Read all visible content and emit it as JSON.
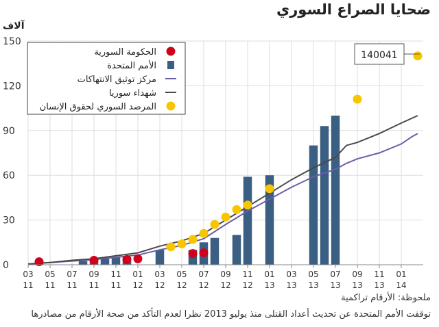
{
  "title": "ضحايا الصراع السوري",
  "unit_label": "آلاف",
  "notes": {
    "line1": "ملحوظة: الأرقام تراكمية",
    "line2": "توقفت الأمم المتحدة عن تحديث أعداد القتلى منذ يوليو 2013 نظرا لعدم التأكد من صحة الأرقام من مصادرها"
  },
  "callout": "140041",
  "colors": {
    "government": "#d0021b",
    "un": "#3a5f82",
    "vdc": "#6a5da8",
    "martyrs": "#4a4a4a",
    "sohr": "#f7c600",
    "grid": "#dddddd",
    "axis": "#888888"
  },
  "chart_data": {
    "type": "line",
    "ylim": [
      0,
      150
    ],
    "yticks": [
      0,
      30,
      60,
      90,
      120,
      150
    ],
    "xlim": [
      0,
      36
    ],
    "xticks": [
      {
        "x": 0,
        "top": "03",
        "bottom": "11"
      },
      {
        "x": 2,
        "top": "05",
        "bottom": "11"
      },
      {
        "x": 4,
        "top": "07",
        "bottom": "11"
      },
      {
        "x": 6,
        "top": "09",
        "bottom": "11"
      },
      {
        "x": 8,
        "top": "11",
        "bottom": "11"
      },
      {
        "x": 10,
        "top": "01",
        "bottom": "12"
      },
      {
        "x": 12,
        "top": "03",
        "bottom": "12"
      },
      {
        "x": 14,
        "top": "05",
        "bottom": "12"
      },
      {
        "x": 16,
        "top": "07",
        "bottom": "12"
      },
      {
        "x": 18,
        "top": "09",
        "bottom": "12"
      },
      {
        "x": 20,
        "top": "11",
        "bottom": "12"
      },
      {
        "x": 22,
        "top": "01",
        "bottom": "13"
      },
      {
        "x": 24,
        "top": "03",
        "bottom": "13"
      },
      {
        "x": 26,
        "top": "05",
        "bottom": "13"
      },
      {
        "x": 28,
        "top": "07",
        "bottom": "13"
      },
      {
        "x": 30,
        "top": "09",
        "bottom": "13"
      },
      {
        "x": 32,
        "top": "11",
        "bottom": "13"
      },
      {
        "x": 34,
        "top": "01",
        "bottom": "14"
      }
    ],
    "legend_position": "top-left",
    "series": [
      {
        "name": "الحكومة السورية",
        "kind": "point",
        "color_key": "government",
        "points": [
          [
            1,
            2
          ],
          [
            6,
            3
          ],
          [
            9,
            3.5
          ],
          [
            10,
            4
          ],
          [
            15,
            7.5
          ],
          [
            16,
            8
          ]
        ]
      },
      {
        "name": "الأمم المتحدة",
        "kind": "bar",
        "color_key": "un",
        "points": [
          [
            1,
            1
          ],
          [
            5,
            2.5
          ],
          [
            6,
            3.5
          ],
          [
            7,
            4
          ],
          [
            8,
            5
          ],
          [
            9,
            5
          ],
          [
            12,
            10
          ],
          [
            15,
            10
          ],
          [
            16,
            15
          ],
          [
            17,
            18
          ],
          [
            19,
            20
          ],
          [
            20,
            59
          ],
          [
            22,
            60
          ],
          [
            26,
            80
          ],
          [
            27,
            93
          ],
          [
            28,
            100
          ]
        ]
      },
      {
        "name": "مركز توثيق الانتهاكات",
        "kind": "line",
        "color_key": "vdc",
        "points": [
          [
            0,
            0.5
          ],
          [
            2,
            1.5
          ],
          [
            4,
            2.5
          ],
          [
            6,
            3.5
          ],
          [
            8,
            5
          ],
          [
            10,
            6.5
          ],
          [
            12,
            10
          ],
          [
            14,
            13
          ],
          [
            16,
            17.5
          ],
          [
            18,
            27
          ],
          [
            20,
            36
          ],
          [
            22,
            44
          ],
          [
            24,
            52
          ],
          [
            26,
            59
          ],
          [
            28,
            64
          ],
          [
            29,
            68
          ],
          [
            30,
            71
          ],
          [
            32,
            75
          ],
          [
            34,
            81
          ],
          [
            35,
            86
          ],
          [
            35.5,
            88
          ]
        ]
      },
      {
        "name": "شهداء سوريا",
        "kind": "line",
        "color_key": "martyrs",
        "points": [
          [
            0,
            0.5
          ],
          [
            2,
            1.5
          ],
          [
            4,
            3
          ],
          [
            6,
            4
          ],
          [
            8,
            6
          ],
          [
            10,
            8
          ],
          [
            12,
            12.5
          ],
          [
            14,
            16
          ],
          [
            16,
            21
          ],
          [
            18,
            30
          ],
          [
            20,
            39
          ],
          [
            22,
            48
          ],
          [
            24,
            57
          ],
          [
            26,
            65
          ],
          [
            28,
            72
          ],
          [
            29,
            80
          ],
          [
            30,
            82
          ],
          [
            32,
            88
          ],
          [
            34,
            95
          ],
          [
            35.5,
            100
          ]
        ]
      },
      {
        "name": "المرصد السوري لحقوق الإنسان",
        "kind": "point",
        "color_key": "sohr",
        "points": [
          [
            13,
            12
          ],
          [
            14,
            14
          ],
          [
            15,
            17
          ],
          [
            16,
            21
          ],
          [
            17,
            27
          ],
          [
            18,
            32
          ],
          [
            19,
            37
          ],
          [
            20,
            40
          ],
          [
            22,
            51
          ],
          [
            30,
            111
          ],
          [
            35.5,
            140
          ]
        ]
      }
    ]
  }
}
